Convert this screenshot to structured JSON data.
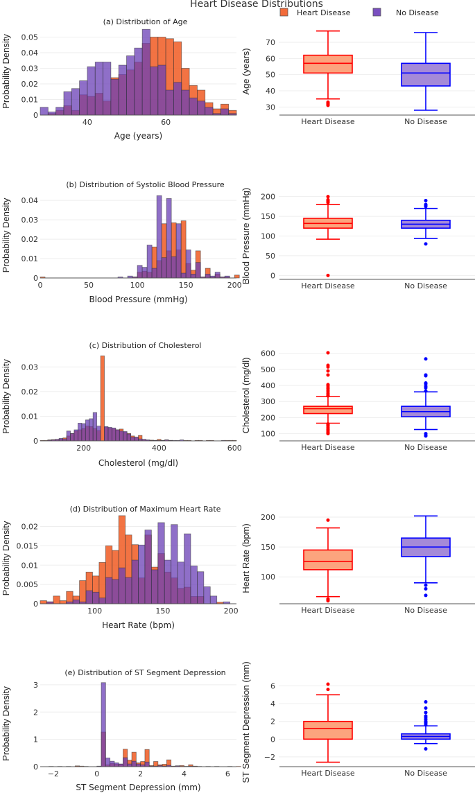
{
  "title": "Heart Disease Distributions",
  "legend": [
    {
      "label": "Heart Disease",
      "color": "#f05a22"
    },
    {
      "label": "No Disease",
      "color": "#6a3fb5"
    }
  ],
  "colors": {
    "hist_disease": "#f05a22",
    "hist_no_disease": "#6a3fb5",
    "box_disease_line": "#ff0000",
    "box_disease_fill": "#fca47e",
    "box_no_disease_line": "#0000ff",
    "box_no_disease_fill": "#a58ad8"
  },
  "chart_data": [
    {
      "type": "bar",
      "subtype": "overlaid-histogram",
      "title": "(a) Distribution of Age",
      "xlabel": "Age (years)",
      "ylabel": "Probability Density",
      "xlim": [
        28,
        78
      ],
      "ylim": [
        0,
        0.056
      ],
      "xticks": [
        40,
        60
      ],
      "yticks": [
        0,
        0.01,
        0.02,
        0.03,
        0.04,
        0.05
      ],
      "ytick_labels": [
        "0",
        "0.01",
        "0.02",
        "0.03",
        "0.04",
        "0.05"
      ],
      "bin_start": 28,
      "bin_width": 2,
      "series": [
        {
          "name": "Heart Disease",
          "values": [
            0.0,
            0.001,
            0.003,
            0.006,
            0.003,
            0.013,
            0.012,
            0.014,
            0.009,
            0.024,
            0.026,
            0.029,
            0.034,
            0.046,
            0.05,
            0.05,
            0.049,
            0.047,
            0.03,
            0.019,
            0.016,
            0.008,
            0.004,
            0.007,
            0.003
          ]
        },
        {
          "name": "No Disease",
          "values": [
            0.005,
            0.002,
            0.005,
            0.015,
            0.017,
            0.022,
            0.031,
            0.034,
            0.034,
            0.023,
            0.032,
            0.038,
            0.043,
            0.055,
            0.031,
            0.032,
            0.016,
            0.021,
            0.016,
            0.011,
            0.009,
            0.005,
            0.001,
            0.004,
            0.001
          ]
        }
      ]
    },
    {
      "type": "box",
      "title": "",
      "xlabel": "",
      "ylabel": "Age (years)",
      "ylim": [
        25,
        79
      ],
      "yticks": [
        30,
        40,
        50,
        60,
        70
      ],
      "categories": [
        "Heart Disease",
        "No Disease"
      ],
      "boxes": [
        {
          "name": "Heart Disease",
          "min": 35,
          "q1": 51,
          "median": 57,
          "q3": 62,
          "max": 77,
          "outliers": [
            31,
            31.5,
            32,
            32.5,
            33
          ]
        },
        {
          "name": "No Disease",
          "min": 28,
          "q1": 43,
          "median": 51,
          "q3": 57,
          "max": 76,
          "outliers": []
        }
      ]
    },
    {
      "type": "bar",
      "subtype": "overlaid-histogram",
      "title": "(b) Distribution of Systolic Blood Pressure",
      "xlabel": "Blood Pressure (mmHg)",
      "ylabel": "Probability Density",
      "xlim": [
        0,
        202
      ],
      "ylim": [
        0,
        0.044
      ],
      "xticks": [
        0,
        50,
        100,
        150,
        200
      ],
      "yticks": [
        0,
        0.01,
        0.02,
        0.03,
        0.04
      ],
      "ytick_labels": [
        "0",
        "0.01",
        "0.02",
        "0.03",
        "0.04"
      ],
      "bin_start": 0,
      "bin_width": 5,
      "series": [
        {
          "name": "Heart Disease",
          "values": [
            0.0005,
            0,
            0,
            0,
            0,
            0,
            0,
            0,
            0,
            0,
            0,
            0,
            0,
            0,
            0,
            0,
            0,
            0,
            0.0,
            0.0005,
            0.003,
            0.0035,
            0.003,
            0.016,
            0.009,
            0.028,
            0.014,
            0.0285,
            0.0145,
            0.0295,
            0.0075,
            0.004,
            0.014,
            0.0005,
            0.005,
            0.0005,
            0.002,
            0.0005,
            0.0005,
            0,
            0.0015
          ]
        },
        {
          "name": "No Disease",
          "values": [
            0,
            0,
            0,
            0,
            0,
            0,
            0,
            0,
            0,
            0,
            0,
            0,
            0,
            0,
            0,
            0,
            0.0005,
            0,
            0.001,
            0.0005,
            0.0065,
            0.0055,
            0.017,
            0.005,
            0.0425,
            0.0105,
            0.041,
            0.011,
            0.028,
            0.0025,
            0.0145,
            0.002,
            0.008,
            0.0005,
            0.002,
            0.001,
            0.003,
            0.0005,
            0.001,
            0,
            0
          ]
        }
      ]
    },
    {
      "type": "box",
      "title": "",
      "xlabel": "",
      "ylabel": "Blood Pressure (mmHg)",
      "ylim": [
        -10,
        210
      ],
      "yticks": [
        0,
        50,
        100,
        150,
        200
      ],
      "categories": [
        "Heart Disease",
        "No Disease"
      ],
      "boxes": [
        {
          "name": "Heart Disease",
          "min": 92,
          "q1": 120,
          "median": 132,
          "q3": 145,
          "max": 180,
          "outliers": [
            0,
            185,
            188,
            190,
            192,
            200
          ]
        },
        {
          "name": "No Disease",
          "min": 94,
          "q1": 120,
          "median": 130,
          "q3": 140,
          "max": 170,
          "outliers": [
            80,
            175,
            178,
            180,
            190
          ]
        }
      ]
    },
    {
      "type": "bar",
      "subtype": "overlaid-histogram",
      "title": "(c) Distribution of Cholesterol",
      "xlabel": "Cholesterol (mg/dl)",
      "ylabel": "Probability Density",
      "xlim": [
        85,
        605
      ],
      "ylim": [
        0,
        0.036
      ],
      "xticks": [
        200,
        400,
        600
      ],
      "yticks": [
        0,
        0.01,
        0.02,
        0.03
      ],
      "ytick_labels": [
        "0",
        "0.01",
        "0.02",
        "0.03"
      ],
      "bin_start": 85,
      "bin_width": 10,
      "series": [
        {
          "name": "Heart Disease",
          "values": [
            0.0002,
            0.0002,
            0.0004,
            0.0005,
            0.0006,
            0.0008,
            0.0012,
            0.002,
            0.003,
            0.004,
            0.0045,
            0.005,
            0.006,
            0.0058,
            0.005,
            0.0042,
            0.0345,
            0.0055,
            0.0052,
            0.005,
            0.0045,
            0.0048,
            0.0035,
            0.003,
            0.002,
            0.0015,
            0.0022,
            0.0006,
            0.0003,
            0.0003,
            0.0002,
            0.0006,
            0.0002,
            0.0004,
            0.0002,
            0,
            0,
            0,
            0.0002,
            0.0002,
            0,
            0.0002,
            0.0002,
            0,
            0.0002,
            0.0002,
            0,
            0,
            0,
            0.0002,
            0.0002,
            0.0002
          ]
        },
        {
          "name": "No Disease",
          "values": [
            0,
            0,
            0.0003,
            0.0004,
            0.0006,
            0.001,
            0.0008,
            0.004,
            0.003,
            0.0045,
            0.0072,
            0.007,
            0.0085,
            0.009,
            0.0115,
            0.006,
            0.0,
            0.0058,
            0.0055,
            0.0052,
            0.0045,
            0.004,
            0.0038,
            0.0028,
            0.0015,
            0.0015,
            0.0008,
            0.0006,
            0.0004,
            0.0002,
            0.0002,
            0.0002,
            0.0002,
            0.0004,
            0.0002,
            0.0002,
            0.0002,
            0.0004,
            0,
            0,
            0,
            0,
            0,
            0,
            0,
            0,
            0,
            0,
            0.0002,
            0,
            0,
            0
          ]
        }
      ]
    },
    {
      "type": "box",
      "title": "",
      "xlabel": "",
      "ylabel": "Cholesterol  (mg/dl)",
      "ylim": [
        55,
        620
      ],
      "yticks": [
        100,
        200,
        300,
        400,
        500,
        600
      ],
      "categories": [
        "Heart Disease",
        "No Disease"
      ],
      "boxes": [
        {
          "name": "Heart Disease",
          "min": 165,
          "q1": 225,
          "median": 255,
          "q3": 270,
          "max": 330,
          "outliers": [
            100,
            105,
            110,
            118,
            125,
            130,
            140,
            150,
            155,
            160,
            335,
            340,
            350,
            360,
            370,
            380,
            390,
            400,
            405,
            465,
            490,
            515,
            525,
            603
          ]
        },
        {
          "name": "No Disease",
          "min": 126,
          "q1": 205,
          "median": 237,
          "q3": 270,
          "max": 360,
          "outliers": [
            85,
            90,
            100,
            365,
            385,
            395,
            410,
            415,
            460,
            465,
            565
          ]
        }
      ]
    },
    {
      "type": "bar",
      "subtype": "overlaid-histogram",
      "title": "(d) Distribution of Maximum Heart Rate",
      "xlabel": "Heart Rate  (bpm)",
      "ylabel": "Probability Density",
      "xlim": [
        60,
        204
      ],
      "ylim": [
        0,
        0.0235
      ],
      "xticks": [
        100,
        150,
        200
      ],
      "yticks": [
        0,
        0.005,
        0.01,
        0.015,
        0.02
      ],
      "ytick_labels": [
        "0",
        "0.005",
        "0.01",
        "0.015",
        "0.02"
      ],
      "bin_start": 60,
      "bin_width": 4.8,
      "series": [
        {
          "name": "Heart Disease",
          "values": [
            0.0008,
            0.0005,
            0.002,
            0.0008,
            0.0032,
            0.002,
            0.006,
            0.0082,
            0.0072,
            0.0107,
            0.015,
            0.0138,
            0.0228,
            0.0178,
            0.0153,
            0.0067,
            0.0178,
            0.0095,
            0.013,
            0.0082,
            0.0067,
            0.004,
            0.0043,
            0.0019,
            0.0019,
            0,
            0,
            0.0004,
            0
          ]
        },
        {
          "name": "No Disease",
          "values": [
            0,
            0.0005,
            0,
            0,
            0.0005,
            0.001,
            0.0005,
            0.0034,
            0.003,
            0.0015,
            0.0068,
            0.0063,
            0.0093,
            0.0068,
            0.0113,
            0.0152,
            0.0191,
            0.0088,
            0.021,
            0.0113,
            0.0205,
            0.0108,
            0.0181,
            0.0098,
            0.0083,
            0.0044,
            0.002,
            0,
            0.0005
          ]
        }
      ]
    },
    {
      "type": "box",
      "title": "",
      "xlabel": "",
      "ylabel": "Heart Rate (bpm)",
      "ylim": [
        55,
        207
      ],
      "yticks": [
        100,
        150,
        200
      ],
      "categories": [
        "Heart Disease",
        "No Disease"
      ],
      "boxes": [
        {
          "name": "Heart Disease",
          "min": 67,
          "q1": 112,
          "median": 126,
          "q3": 145,
          "max": 182,
          "outliers": [
            60,
            62,
            63,
            195
          ]
        },
        {
          "name": "No Disease",
          "min": 90,
          "q1": 134,
          "median": 150,
          "q3": 165,
          "max": 202,
          "outliers": [
            69,
            80,
            86
          ]
        }
      ]
    },
    {
      "type": "bar",
      "subtype": "overlaid-histogram",
      "title": "(e) Distribution of ST Segment Depression",
      "xlabel": "ST Segment Depression (mm)",
      "ylabel": "Probability Density",
      "xlim": [
        -2.6,
        6.4
      ],
      "ylim": [
        0,
        3.15
      ],
      "xticks": [
        -2,
        0,
        2,
        4,
        6
      ],
      "xtick_labels": [
        "−2",
        "0",
        "2",
        "4",
        "6"
      ],
      "yticks": [
        0,
        1,
        2,
        3
      ],
      "ytick_labels": [
        "0",
        "1",
        "2",
        "3"
      ],
      "bin_start": -2.6,
      "bin_width": 0.2,
      "series": [
        {
          "name": "Heart Disease",
          "values": [
            0,
            0,
            0.01,
            0,
            0.01,
            0,
            0.01,
            0,
            0.03,
            0.02,
            0,
            0,
            0,
            0.01,
            1.27,
            0.07,
            0.12,
            0.1,
            0.09,
            0.64,
            0.24,
            0.53,
            0.14,
            0.19,
            0.63,
            0.04,
            0.19,
            0.07,
            0.09,
            0.25,
            0.02,
            0.03,
            0.04,
            0.01,
            0.07,
            0.02,
            0.01,
            0,
            0.01,
            0,
            0.01,
            0,
            0,
            0.01,
            0,
            0.01
          ]
        },
        {
          "name": "No Disease",
          "values": [
            0,
            0,
            0,
            0,
            0,
            0,
            0,
            0,
            0.01,
            0,
            0.01,
            0,
            0,
            0.02,
            3.08,
            0.32,
            0.2,
            0.14,
            0.1,
            0.33,
            0.1,
            0.2,
            0.1,
            0.07,
            0.17,
            0.02,
            0.02,
            0.04,
            0.02,
            0.05,
            0.01,
            0.03,
            0.01,
            0.01,
            0.02,
            0.01,
            0,
            0,
            0,
            0,
            0,
            0,
            0,
            0,
            0,
            0
          ]
        }
      ]
    },
    {
      "type": "box",
      "title": "",
      "xlabel": "",
      "ylabel": "ST Segment Depression (mm)",
      "ylim": [
        -3.1,
        6.9
      ],
      "yticks": [
        -2,
        0,
        2,
        4,
        6
      ],
      "ytick_labels": [
        "−2",
        "0",
        "2",
        "4",
        "6"
      ],
      "categories": [
        "Heart Disease",
        "No Disease"
      ],
      "boxes": [
        {
          "name": "Heart Disease",
          "min": -2.6,
          "q1": 0,
          "median": 1.2,
          "q3": 2,
          "max": 5,
          "outliers": [
            5.6,
            6.2
          ]
        },
        {
          "name": "No Disease",
          "min": -0.5,
          "q1": 0,
          "median": 0.3,
          "q3": 0.6,
          "max": 1.5,
          "outliers": [
            -1.1,
            1.6,
            1.8,
            1.9,
            2.0,
            2.2,
            2.4,
            2.6,
            3.0,
            3.5,
            4.2
          ]
        }
      ]
    }
  ]
}
